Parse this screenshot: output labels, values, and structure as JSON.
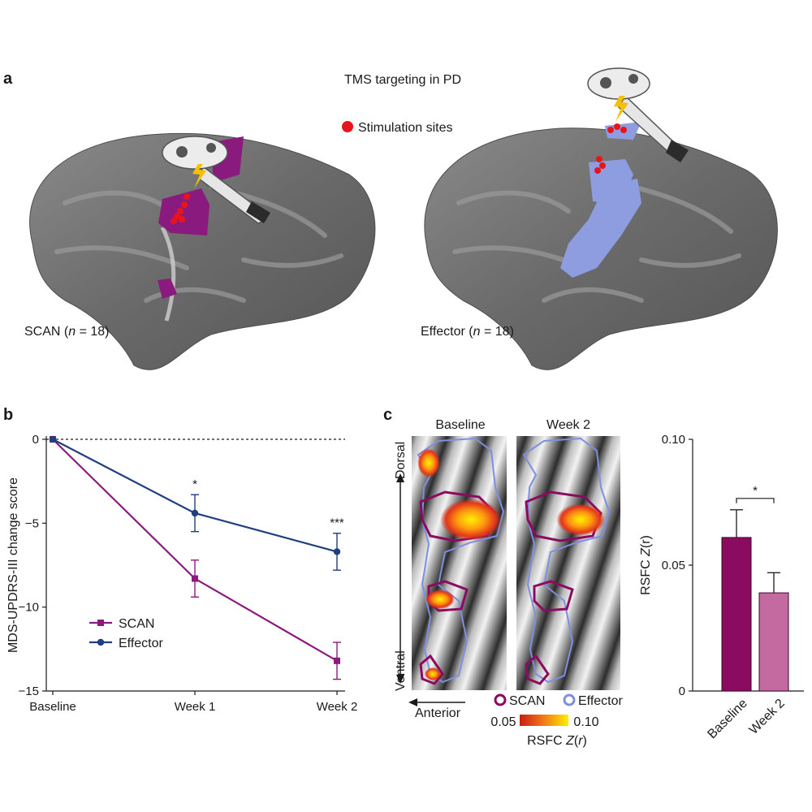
{
  "panel_a": {
    "letter": "a",
    "title": "TMS targeting in PD",
    "legend": "Stimulation sites",
    "left_caption": {
      "prefix": "SCAN (",
      "n": "n",
      "suffix": " = 18)"
    },
    "right_caption": {
      "prefix": "Effector (",
      "n": "n",
      "suffix": " = 18)"
    },
    "colors": {
      "scan": "#8b1a7e",
      "effector": "#8d9de0",
      "site": "#e8141c",
      "bolt": "#f5c000",
      "brain": "#6b6b6b"
    }
  },
  "panel_b": {
    "letter": "b"
  },
  "panel_c": {
    "letter": "c",
    "map_titles": [
      "Baseline",
      "Week 2"
    ],
    "dorsal": "Dorsal",
    "ventral": "Ventral",
    "anterior": "Anterior",
    "legend_scan": "SCAN",
    "legend_effector": "Effector",
    "colorbar_min": "0.05",
    "colorbar_max": "0.10",
    "colorbar_label_prefix": "RSFC ",
    "colorbar_label_z": "Z",
    "colorbar_label_paren_open": "(",
    "colorbar_label_r": "r",
    "colorbar_label_paren_close": ")"
  },
  "chart_data": [
    {
      "type": "line",
      "x": [
        "Baseline",
        "Week 1",
        "Week 2"
      ],
      "ylabel": "MDS-UPDRS-III change score",
      "ylim": [
        -15,
        0
      ],
      "yticks": [
        0,
        -5,
        -10,
        -15
      ],
      "ytick_labels": [
        "0",
        "−5",
        "−10",
        "−15"
      ],
      "reference_line": 0,
      "legend_placement": "bottom-left",
      "series": [
        {
          "name": "SCAN",
          "color": "#8b1a7e",
          "marker": "square",
          "values": [
            0,
            -8.3,
            -13.2
          ],
          "err": [
            0,
            1.1,
            1.1
          ]
        },
        {
          "name": "Effector",
          "color": "#1f3f80",
          "marker": "circle",
          "values": [
            0,
            -4.4,
            -6.7
          ],
          "err": [
            0,
            1.1,
            1.1
          ]
        }
      ],
      "annotations": [
        {
          "x": "Week 1",
          "text": "*"
        },
        {
          "x": "Week 2",
          "text": "***"
        }
      ]
    },
    {
      "type": "bar",
      "categories": [
        "Baseline",
        "Week 2"
      ],
      "values": [
        0.061,
        0.039
      ],
      "err": [
        0.011,
        0.008
      ],
      "colors": [
        "#8b0b60",
        "#c46aa0"
      ],
      "ylabel_prefix": "RSFC ",
      "ylabel_z": "Z",
      "ylabel_r": "(r)",
      "ylim": [
        0,
        0.1
      ],
      "yticks": [
        0,
        0.05,
        0.1
      ],
      "ytick_labels": [
        "0",
        "0.05",
        "0.10"
      ],
      "significance": "*"
    }
  ]
}
